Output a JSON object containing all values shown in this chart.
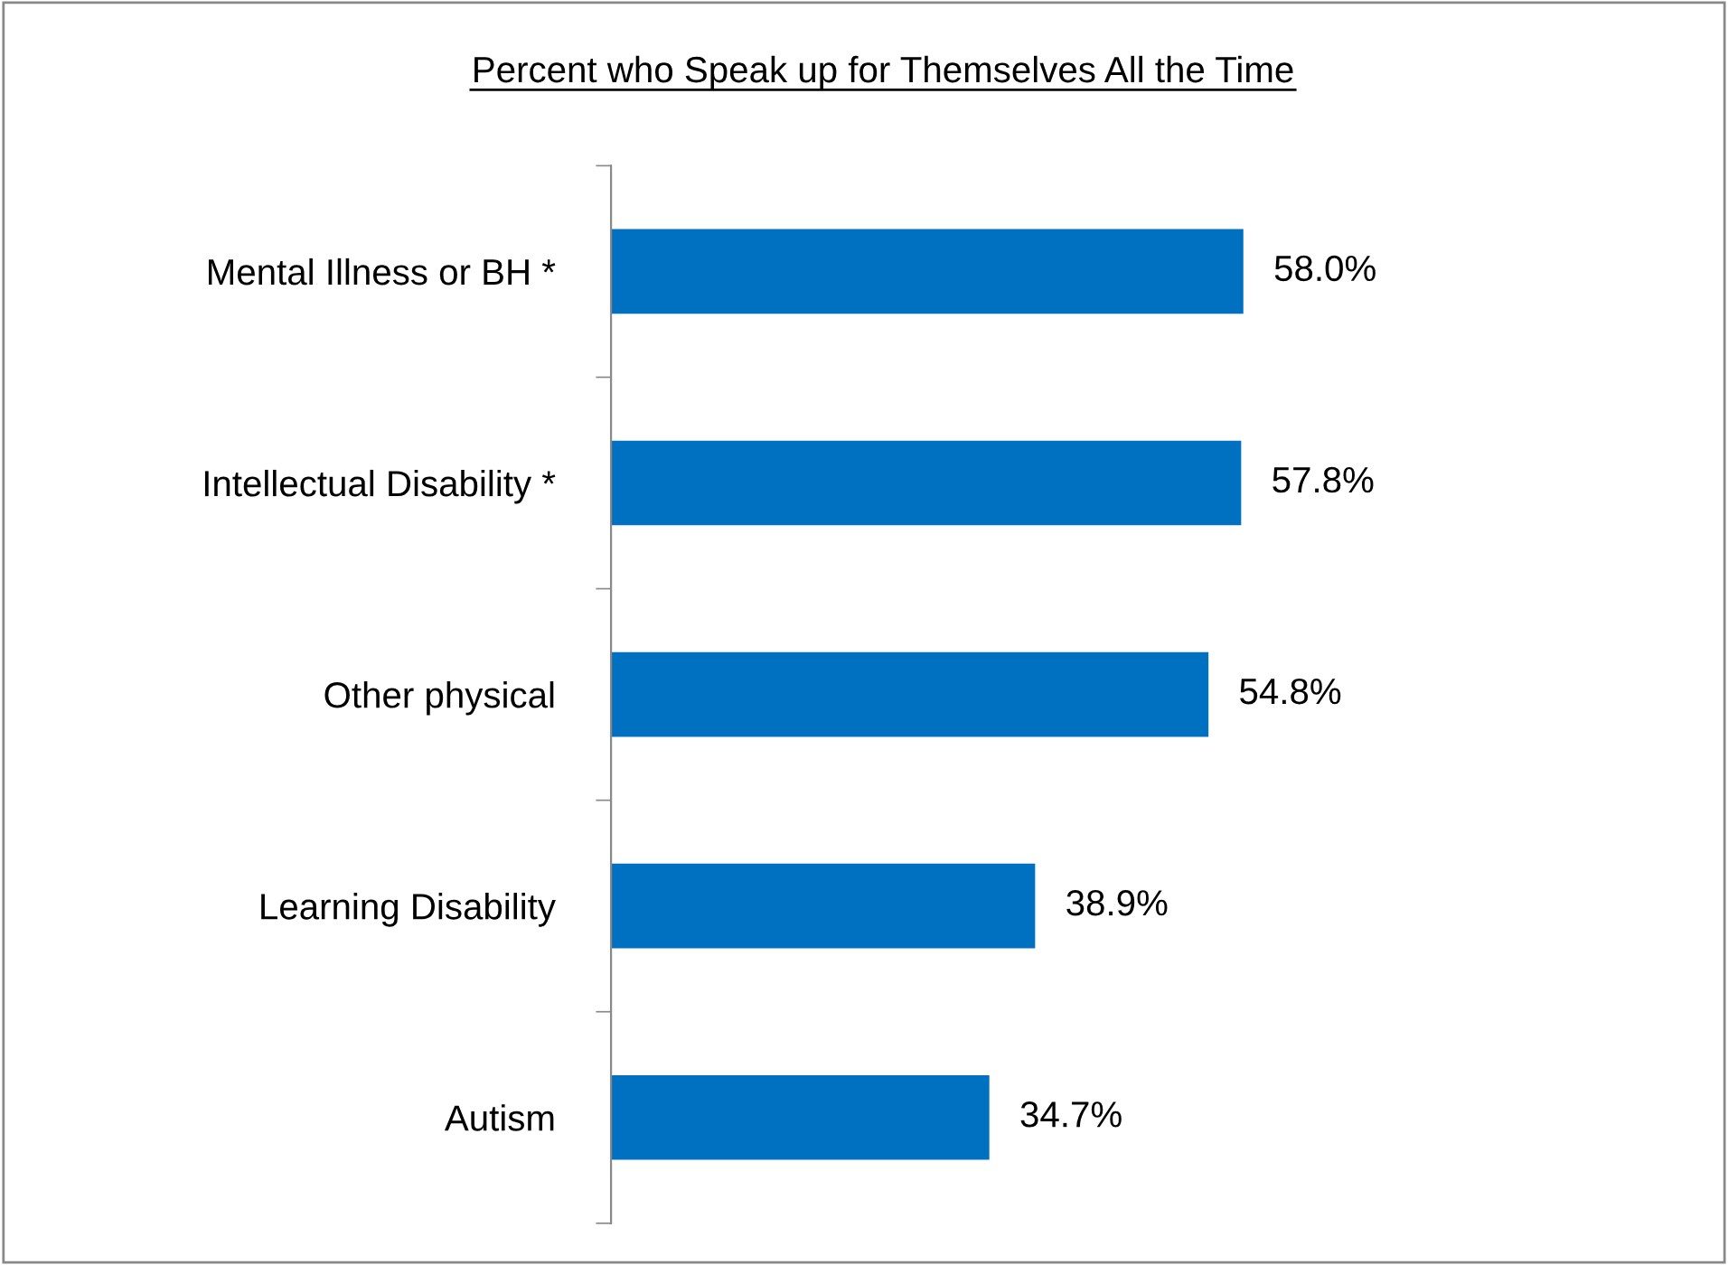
{
  "chart_data": {
    "type": "bar",
    "orientation": "horizontal",
    "title": "Percent who Speak up for Themselves All the Time",
    "categories": [
      "Mental Illness or BH *",
      "Intellectual Disability *",
      "Other physical",
      "Learning Disability",
      "Autism"
    ],
    "values": [
      58.0,
      57.8,
      54.8,
      38.9,
      34.7
    ],
    "value_labels": [
      "58.0%",
      "57.8%",
      "54.8%",
      "38.9%",
      "34.7%"
    ],
    "color": "#0070c0",
    "grid": false,
    "legend": false
  }
}
